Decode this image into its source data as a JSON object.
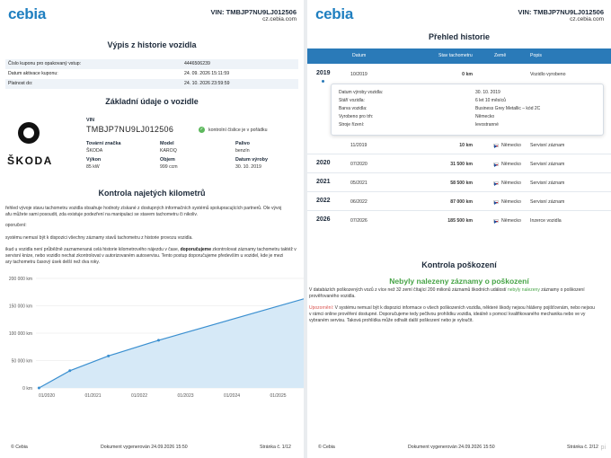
{
  "brand": {
    "logo": "cebia",
    "accent": "#1f7fc0"
  },
  "vin_header": {
    "vin": "VIN: TMBJP7NU9LJ012506",
    "site": "cz.cebia.com"
  },
  "left": {
    "title": "Výpis z historie vozidla",
    "coupon": [
      {
        "k": "Číslo kuponu pro opakovaný vstup:",
        "v": "4446506239"
      },
      {
        "k": "Datum aktivace kuponu:",
        "v": "24. 09. 2026 15:11:59"
      },
      {
        "k": "Platnost do:",
        "v": "24. 10. 2026 23:59:59"
      }
    ],
    "basic_title": "Základní údaje o vozidle",
    "make_logo": "ŠKODA",
    "vin_label": "VIN",
    "vin_value": "TMBJP7NU9LJ012506",
    "vin_ok": "kontrolní číslice je v pořádku",
    "specs": {
      "brand_l": "Tovární značka",
      "brand_v": "ŠKODA",
      "model_l": "Model",
      "model_v": "KAROQ",
      "fuel_l": "Palivo",
      "fuel_v": "benzín",
      "power_l": "Výkon",
      "power_v": "85 kW",
      "volume_l": "Objem",
      "volume_v": "999 ccm",
      "made_l": "Datum výroby",
      "made_v": "30. 10. 2019"
    },
    "km_title": "Kontrola najetých kilometrů",
    "p1": "řehled vývoje stavu tachometru vozidla obsahuje hodnoty získané z dostupných informačních systémů spolupracujících partnerů. Ole vývoj",
    "p1b": "afu můžete sami posoudit, zda existuje podezření na manipulaci se stavem tachometru či nikoliv.",
    "p2": "oporučení:",
    "p3": "systému nemusí být k dispozici všechny záznamy stavů tachometru z historie provozu vozidla.",
    "p4a": "ikud u vozidla není průběžně zaznamenaná celá historie kilometrového nájezdu v čase,",
    "p4b": "doporučujeme",
    "p4c": "zkontrolovat záznamy tachometru taktéž v",
    "p4d": "servisní knize, nebo vozidlo nechat zkontrolovat v autorizovaném autoservisu. Tento postup doporučujeme především u vozidel, kde je mezi",
    "p4e": "ary tachometru časový úsek delší než dva roky.",
    "footer_left": "© Cebia",
    "footer_mid": "Dokument vygenerován 24.09.2026 15:50",
    "footer_right": "Stránka č.  1/12"
  },
  "chart_data": {
    "type": "area",
    "x": [
      "11/2019",
      "07/2020",
      "05/2021",
      "06/2022",
      "07/2026"
    ],
    "values": [
      10,
      31500,
      58500,
      87000,
      185500
    ],
    "xticks": [
      "01/2020",
      "01/2021",
      "01/2022",
      "01/2023",
      "01/2024",
      "01/2025",
      "01/20"
    ],
    "yticks": [
      "0 km",
      "50 000 km",
      "100 000 km",
      "150 000 km",
      "200 000 km"
    ],
    "ylim": [
      0,
      200000
    ],
    "color": "#3a8fd0",
    "fill": "#d6e9f7"
  },
  "right": {
    "title": "Přehled historie",
    "head": {
      "date": "Datum",
      "km": "Stav tachometru",
      "country": "Země",
      "desc": "Popis"
    },
    "rows": [
      {
        "year": "2019",
        "date": "10/2019",
        "km": "0 km",
        "country": "",
        "desc": "Vozidlo vyrobeno"
      },
      {
        "year": "",
        "date": "11/2019",
        "km": "10 km",
        "country": "Německo",
        "desc": "Servisní záznam"
      },
      {
        "year": "2020",
        "date": "07/2020",
        "km": "31 500 km",
        "country": "Německo",
        "desc": "Servisní záznam"
      },
      {
        "year": "2021",
        "date": "05/2021",
        "km": "58 500 km",
        "country": "Německo",
        "desc": "Servisní záznam"
      },
      {
        "year": "2022",
        "date": "06/2022",
        "km": "87 000 km",
        "country": "Německo",
        "desc": "Servisní záznam"
      },
      {
        "year": "2026",
        "date": "07/2026",
        "km": "185 500 km",
        "country": "Německo",
        "desc": "Inzerce vozidla"
      }
    ],
    "detail": [
      {
        "k": "Datum výroby vozidla:",
        "v": "30. 10. 2019"
      },
      {
        "k": "Stáří vozidla:",
        "v": "6 let 10 měsíců"
      },
      {
        "k": "Barva vozidla:",
        "v": "Business Grey Metallic – kód 2C"
      },
      {
        "k": "Vyrobeno pro trh:",
        "v": "Německo"
      },
      {
        "k": "Stroje řízení:",
        "v": "levostranné"
      }
    ],
    "damage_title": "Kontrola poškození",
    "damage_head": "Nebyly nalezeny záznamy o poškození",
    "d1a": "V databázích poškozených vozů z více než 32 zemí čítající 200 milionů záznamů škodních událostí",
    "d1b": "nebyly nalezeny",
    "d1c": "záznamy o poškození",
    "d1d": "prověřovaného vozidla.",
    "d2a": "Upozornění:",
    "d2b": "V systému nemusí být k dispozici informace o všech poškozeních vozidla, některé škody nejsou hlášeny pojišťovnám, nebo nejsou",
    "d2c": "v rámci online prověření dostupné. Doporučujeme tedy pečlivou prohlídku vozidla, ideálně s pomocí kvalifikovaného mechanika nebo ve vy",
    "d2d": "vybraném servisu. Taková prohlídka může odhalit další poškození nebo je vyloučit.",
    "footer_left": "© Cebia",
    "footer_mid": "Dokument vygenerován 24.09.2026 15:50",
    "footer_right": "Stránka č.  2/12",
    "watermark": "pi "
  }
}
